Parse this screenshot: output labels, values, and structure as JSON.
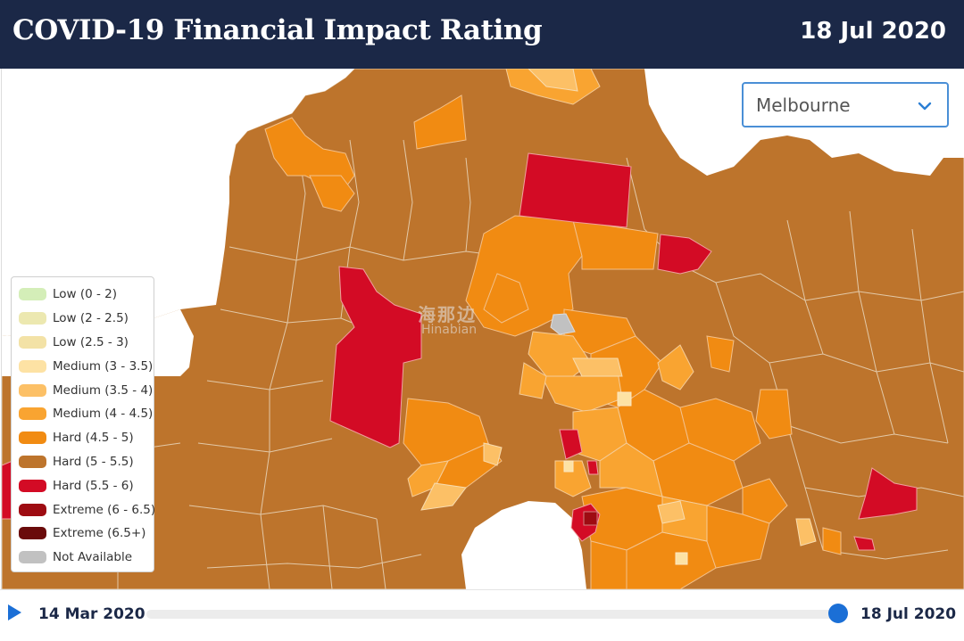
{
  "header": {
    "title": "COVID-19 Financial Impact Rating",
    "date": "18 Jul 2020"
  },
  "region_select": {
    "value": "Melbourne"
  },
  "legend": {
    "items": [
      {
        "label": "Low (0 - 2)",
        "color": "#d4eeb8"
      },
      {
        "label": "Low (2 - 2.5)",
        "color": "#ece8b0"
      },
      {
        "label": "Low (2.5 - 3)",
        "color": "#f3e2a6"
      },
      {
        "label": "Medium (3 - 3.5)",
        "color": "#fde2a4"
      },
      {
        "label": "Medium (3.5 - 4)",
        "color": "#fcc066"
      },
      {
        "label": "Medium (4 - 4.5)",
        "color": "#f9a431"
      },
      {
        "label": "Hard (4.5 - 5)",
        "color": "#f18b12"
      },
      {
        "label": "Hard (5 - 5.5)",
        "color": "#bd742c"
      },
      {
        "label": "Hard (5.5 - 6)",
        "color": "#d30b25"
      },
      {
        "label": "Extreme (6 - 6.5)",
        "color": "#9e0c12"
      },
      {
        "label": "Extreme (6.5+)",
        "color": "#6a0b0b"
      },
      {
        "label": "Not Available",
        "color": "#c1c1c1"
      }
    ]
  },
  "watermark": {
    "cn": "海那边",
    "en": "Hinabian"
  },
  "timeline": {
    "start_label": "14 Mar 2020",
    "end_label": "18 Jul 2020",
    "progress": 1.0
  },
  "colors": {
    "header_bg": "#1b2847",
    "accent": "#1b6fd6",
    "bay_water": "#ffffff",
    "boundary": "#e8d2b6"
  },
  "icons": {
    "dropdown": "chevron-down-icon",
    "play": "play-icon"
  }
}
